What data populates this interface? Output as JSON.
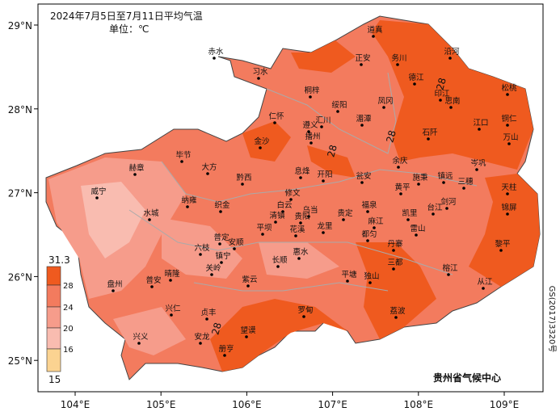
{
  "title": "2024年7月5日至7月11日平均气温",
  "unit": "单位：℃",
  "lon_ticks": [
    {
      "value": 104,
      "label": "104°E"
    },
    {
      "value": 105,
      "label": "105°E"
    },
    {
      "value": 106,
      "label": "106°E"
    },
    {
      "value": 107,
      "label": "107°E"
    },
    {
      "value": 108,
      "label": "108°E"
    },
    {
      "value": 109,
      "label": "109°E"
    }
  ],
  "lat_ticks": [
    {
      "value": 29,
      "label": "29°N"
    },
    {
      "value": 28,
      "label": "28°N"
    },
    {
      "value": 27,
      "label": "27°N"
    },
    {
      "value": 26,
      "label": "26°N"
    },
    {
      "value": 25,
      "label": "25°N"
    }
  ],
  "legend": {
    "max": 31.3,
    "breaks": [
      28,
      24,
      20,
      16
    ],
    "min": 15,
    "colors": [
      "#ef5a1f",
      "#f37b5e",
      "#f69c8b",
      "#f9bcb0",
      "#fbd391"
    ]
  },
  "contour_labels": [
    28,
    28,
    28,
    28
  ],
  "cities": [
    "道真",
    "赤水",
    "正安",
    "务川",
    "沿河",
    "习水",
    "德江",
    "桐梓",
    "印江",
    "松桃",
    "凤冈",
    "绥阳",
    "思南",
    "湄潭",
    "仁怀",
    "汇川",
    "遵义",
    "播州",
    "江口",
    "铜仁",
    "万山",
    "金沙",
    "石阡",
    "余庆",
    "毕节",
    "大方",
    "黔西",
    "息烽",
    "开阳",
    "瓮安",
    "施秉",
    "镇远",
    "岑巩",
    "三穗",
    "天柱",
    "赫章",
    "威宁",
    "黄平",
    "锦屏",
    "剑河",
    "台江",
    "凯里",
    "修文",
    "白云",
    "乌当",
    "清镇",
    "贵阳",
    "龙里",
    "贵定",
    "福泉",
    "麻江",
    "雷山",
    "纳雍",
    "织金",
    "水城",
    "平坝",
    "花溪",
    "都匀",
    "丹寨",
    "黎平",
    "六枝",
    "普定",
    "安顺",
    "镇宁",
    "长顺",
    "惠水",
    "三都",
    "榕江",
    "关岭",
    "紫云",
    "平塘",
    "独山",
    "从江",
    "盘州",
    "晴隆",
    "普安",
    "兴仁",
    "贞丰",
    "罗甸",
    "荔波",
    "安龙",
    "望谟",
    "兴义",
    "册亨"
  ],
  "credit": "贵州省气候中心",
  "map_number": "GS(2017)3320号"
}
